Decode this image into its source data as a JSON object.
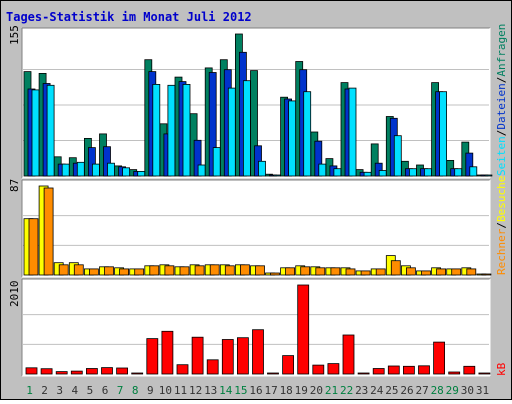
{
  "title": "Tages-Statistik im Monat Juli 2012",
  "colors": {
    "background": "#C0C0C0",
    "plot_background": "#FFFFFF",
    "title": "#0000CC",
    "hits": "#008060",
    "files": "#0033CC",
    "pages": "#00E0FF",
    "visits": "#FFFF00",
    "sites": "#FF8C00",
    "kbytes": "#FF0000",
    "weekday_label": "#333333",
    "weekend_label": "#008040"
  },
  "chart_data": [
    {
      "type": "bar",
      "panel": "hits-files-pages",
      "ylabel_max": "155",
      "ylim": [
        0,
        155
      ],
      "legend": {
        "hits": "Anfragen",
        "sep1": "/",
        "files": "Dateien",
        "sep2": "/",
        "pages": "Seiten"
      },
      "series": [
        {
          "name": "Anfragen",
          "key": "hits",
          "values": [
            114,
            112,
            21,
            20,
            41,
            46,
            11,
            7,
            127,
            57,
            108,
            68,
            118,
            127,
            155,
            115,
            2,
            86,
            125,
            48,
            19,
            102,
            7,
            35,
            65,
            16,
            12,
            102,
            17,
            37,
            1
          ]
        },
        {
          "name": "Dateien",
          "key": "files",
          "values": [
            95,
            101,
            13,
            14,
            31,
            32,
            10,
            5,
            114,
            46,
            103,
            39,
            113,
            116,
            135,
            33,
            1,
            84,
            116,
            38,
            11,
            95,
            4,
            14,
            63,
            8,
            8,
            92,
            8,
            25,
            1
          ]
        },
        {
          "name": "Seiten",
          "key": "pages",
          "values": [
            94,
            99,
            13,
            15,
            13,
            14,
            9,
            5,
            100,
            99,
            100,
            12,
            31,
            96,
            104,
            16,
            1,
            82,
            92,
            13,
            8,
            96,
            4,
            6,
            44,
            8,
            8,
            92,
            8,
            10,
            1
          ]
        }
      ]
    },
    {
      "type": "bar",
      "panel": "visits-sites",
      "ylabel_max": "87",
      "ylim": [
        0,
        87
      ],
      "legend": {
        "visits": "Besuche",
        "sep1": "/",
        "sites": "Rechner"
      },
      "series": [
        {
          "name": "Besuche",
          "key": "visits",
          "values": [
            55,
            87,
            12,
            12,
            6,
            8,
            7,
            6,
            9,
            10,
            8,
            10,
            10,
            10,
            10,
            9,
            2,
            7,
            9,
            8,
            7,
            7,
            4,
            6,
            19,
            9,
            4,
            7,
            6,
            7,
            1
          ]
        },
        {
          "name": "Rechner",
          "key": "sites",
          "values": [
            55,
            85,
            10,
            10,
            6,
            8,
            6,
            6,
            9,
            9,
            8,
            9,
            10,
            9,
            10,
            9,
            2,
            7,
            8,
            7,
            7,
            6,
            4,
            6,
            14,
            7,
            4,
            6,
            6,
            6,
            1
          ]
        }
      ]
    },
    {
      "type": "bar",
      "panel": "kbytes",
      "ylabel_max": "2010",
      "ylim": [
        0,
        2010
      ],
      "legend": {
        "kbytes": "kB"
      },
      "series": [
        {
          "name": "kB",
          "key": "kbytes",
          "values": [
            140,
            120,
            55,
            65,
            125,
            145,
            135,
            5,
            800,
            965,
            210,
            830,
            320,
            780,
            820,
            1000,
            10,
            415,
            2010,
            200,
            235,
            880,
            5,
            125,
            180,
            175,
            185,
            720,
            45,
            175,
            5
          ]
        }
      ]
    }
  ],
  "days": [
    "1",
    "2",
    "3",
    "4",
    "5",
    "6",
    "7",
    "8",
    "9",
    "10",
    "11",
    "12",
    "13",
    "14",
    "15",
    "16",
    "17",
    "18",
    "19",
    "20",
    "21",
    "22",
    "23",
    "24",
    "25",
    "26",
    "27",
    "28",
    "29",
    "30",
    "31"
  ],
  "weekend_days": [
    1,
    7,
    8,
    14,
    15,
    21,
    22,
    28,
    29
  ]
}
